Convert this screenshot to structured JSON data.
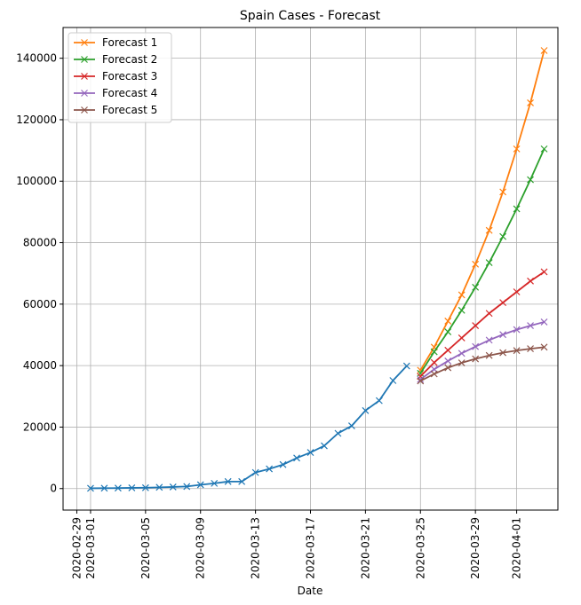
{
  "chart_data": {
    "type": "line",
    "title": "Spain Cases - Forecast",
    "xlabel": "Date",
    "ylabel": "",
    "ylim": [
      -7000,
      150000
    ],
    "xlim": [
      "2020-02-28",
      "2020-04-04"
    ],
    "grid": true,
    "legend_position": "top-left",
    "x_tick_labels": [
      "2020-02-29",
      "2020-03-01",
      "2020-03-05",
      "2020-03-09",
      "2020-03-13",
      "2020-03-17",
      "2020-03-21",
      "2020-03-25",
      "2020-03-29",
      "2020-04-01"
    ],
    "y_tick_labels": [
      "0",
      "20000",
      "40000",
      "60000",
      "80000",
      "100000",
      "120000",
      "140000"
    ],
    "series": [
      {
        "role": "history",
        "color": "#1f77b4",
        "marker": "x",
        "x": [
          "2020-03-01",
          "2020-03-02",
          "2020-03-03",
          "2020-03-04",
          "2020-03-05",
          "2020-03-06",
          "2020-03-07",
          "2020-03-08",
          "2020-03-09",
          "2020-03-10",
          "2020-03-11",
          "2020-03-12",
          "2020-03-13",
          "2020-03-14",
          "2020-03-15",
          "2020-03-16",
          "2020-03-17",
          "2020-03-18",
          "2020-03-19",
          "2020-03-20",
          "2020-03-21",
          "2020-03-22",
          "2020-03-23",
          "2020-03-24"
        ],
        "values": [
          84,
          120,
          165,
          228,
          282,
          401,
          525,
          674,
          1231,
          1695,
          2277,
          2277,
          5232,
          6391,
          7798,
          9942,
          11748,
          13910,
          17963,
          20410,
          25374,
          28603,
          35136,
          39885
        ]
      },
      {
        "name": "Forecast 1",
        "color": "#ff7f0e",
        "marker": "x",
        "x": [
          "2020-03-25",
          "2020-03-26",
          "2020-03-27",
          "2020-03-28",
          "2020-03-29",
          "2020-03-30",
          "2020-03-31",
          "2020-04-01",
          "2020-04-02",
          "2020-04-03"
        ],
        "values": [
          38500,
          46000,
          54500,
          63000,
          73000,
          84000,
          96500,
          110500,
          125500,
          142500
        ]
      },
      {
        "name": "Forecast 2",
        "color": "#2ca02c",
        "marker": "x",
        "x": [
          "2020-03-25",
          "2020-03-26",
          "2020-03-27",
          "2020-03-28",
          "2020-03-29",
          "2020-03-30",
          "2020-03-31",
          "2020-04-01",
          "2020-04-02",
          "2020-04-03"
        ],
        "values": [
          37500,
          44500,
          51000,
          58000,
          65500,
          73500,
          82000,
          91000,
          100500,
          110500
        ]
      },
      {
        "name": "Forecast 3",
        "color": "#d62728",
        "marker": "x",
        "x": [
          "2020-03-25",
          "2020-03-26",
          "2020-03-27",
          "2020-03-28",
          "2020-03-29",
          "2020-03-30",
          "2020-03-31",
          "2020-04-01",
          "2020-04-02",
          "2020-04-03"
        ],
        "values": [
          36500,
          41000,
          45000,
          49000,
          53000,
          57000,
          60500,
          64000,
          67500,
          70500
        ]
      },
      {
        "name": "Forecast 4",
        "color": "#9467bd",
        "marker": "x",
        "x": [
          "2020-03-25",
          "2020-03-26",
          "2020-03-27",
          "2020-03-28",
          "2020-03-29",
          "2020-03-30",
          "2020-03-31",
          "2020-04-01",
          "2020-04-02",
          "2020-04-03"
        ],
        "values": [
          35500,
          38800,
          41500,
          44000,
          46200,
          48300,
          50100,
          51700,
          53000,
          54200
        ]
      },
      {
        "name": "Forecast 5",
        "color": "#8c564b",
        "marker": "x",
        "x": [
          "2020-03-25",
          "2020-03-26",
          "2020-03-27",
          "2020-03-28",
          "2020-03-29",
          "2020-03-30",
          "2020-03-31",
          "2020-04-01",
          "2020-04-02",
          "2020-04-03"
        ],
        "values": [
          35000,
          37300,
          39300,
          40900,
          42200,
          43300,
          44200,
          44900,
          45500,
          46000
        ]
      }
    ]
  }
}
